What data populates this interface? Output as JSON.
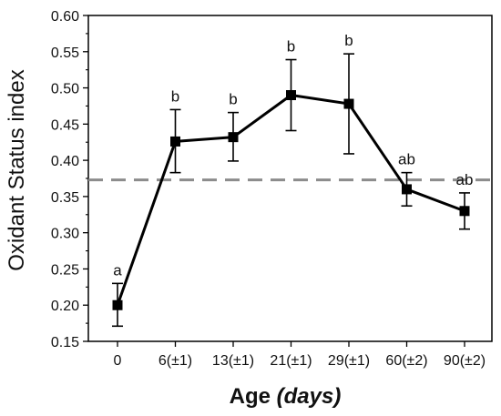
{
  "chart_data": {
    "type": "line",
    "xlabel": "Age",
    "xlabel_unit": "(days)",
    "ylabel": "Oxidant Status index",
    "ylim": [
      0.15,
      0.6
    ],
    "yticks": [
      0.15,
      0.2,
      0.25,
      0.3,
      0.35,
      0.4,
      0.45,
      0.5,
      0.55,
      0.6
    ],
    "categories": [
      "0",
      "6(±1)",
      "13(±1)",
      "21(±1)",
      "29(±1)",
      "60(±2)",
      "90(±2)"
    ],
    "series": [
      {
        "values": [
          0.2,
          0.426,
          0.432,
          0.49,
          0.478,
          0.36,
          0.33
        ],
        "error_upper": [
          0.23,
          0.47,
          0.466,
          0.539,
          0.547,
          0.383,
          0.355
        ],
        "error_lower": [
          0.171,
          0.383,
          0.399,
          0.441,
          0.409,
          0.337,
          0.305
        ],
        "significance_labels": [
          "a",
          "b",
          "b",
          "b",
          "b",
          "ab",
          "ab"
        ]
      }
    ],
    "reference_line": {
      "y": 0.373,
      "style": "dashed",
      "color": "#8c8c8c"
    },
    "colors": {
      "line": "#000000",
      "marker": "#000000",
      "axis": "#000000"
    },
    "grid": false,
    "legend": "none"
  }
}
